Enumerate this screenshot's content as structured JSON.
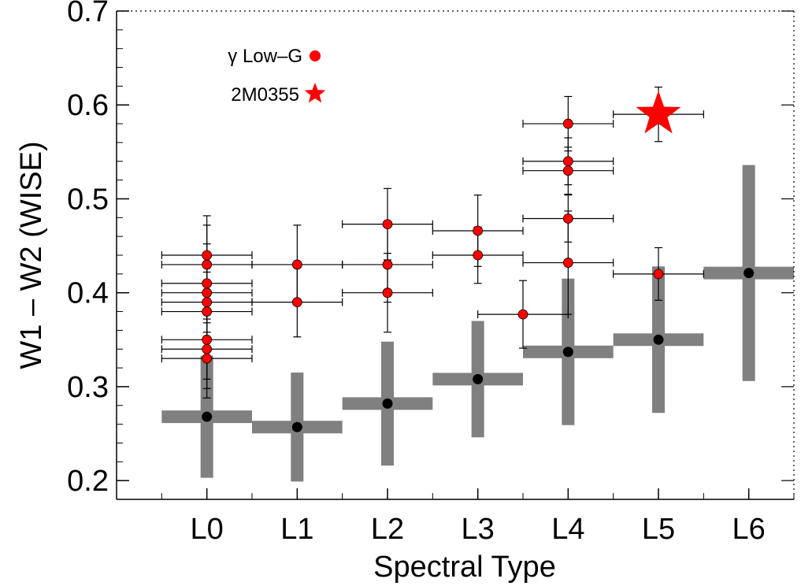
{
  "chart_data": {
    "type": "scatter",
    "title": "",
    "xlabel": "Spectral Type",
    "ylabel": "W1 – W2 (WISE)",
    "xlim": [
      -1.0,
      6.5
    ],
    "ylim": [
      0.18,
      0.7
    ],
    "x_ticks": [
      {
        "value": 0,
        "label": "L0"
      },
      {
        "value": 1,
        "label": "L1"
      },
      {
        "value": 2,
        "label": "L2"
      },
      {
        "value": 3,
        "label": "L3"
      },
      {
        "value": 4,
        "label": "L4"
      },
      {
        "value": 5,
        "label": "L5"
      },
      {
        "value": 6,
        "label": "L6"
      }
    ],
    "y_ticks": [
      {
        "value": 0.2,
        "label": "0.2"
      },
      {
        "value": 0.3,
        "label": "0.3"
      },
      {
        "value": 0.4,
        "label": "0.4"
      },
      {
        "value": 0.5,
        "label": "0.5"
      },
      {
        "value": 0.6,
        "label": "0.6"
      },
      {
        "value": 0.7,
        "label": "0.7"
      }
    ],
    "grid": false,
    "legend_position": "top-left",
    "colors": {
      "field": "#808080",
      "field_point": "#000000",
      "low_g": "#ff0000",
      "highlight": "#ff0000"
    },
    "series": [
      {
        "name": "",
        "marker": "black-circle-gray-errorbars",
        "points": [
          {
            "x": 0,
            "y": 0.268,
            "xerr": 0.5,
            "yerr": 0.065
          },
          {
            "x": 1,
            "y": 0.257,
            "xerr": 0.5,
            "yerr": 0.058
          },
          {
            "x": 2,
            "y": 0.282,
            "xerr": 0.5,
            "yerr": 0.066
          },
          {
            "x": 3,
            "y": 0.308,
            "xerr": 0.5,
            "yerr": 0.062
          },
          {
            "x": 4,
            "y": 0.337,
            "xerr": 0.5,
            "yerr": 0.078
          },
          {
            "x": 5,
            "y": 0.35,
            "xerr": 0.5,
            "yerr": 0.078
          },
          {
            "x": 6,
            "y": 0.421,
            "xerr": 0.5,
            "yerr": 0.115
          }
        ]
      },
      {
        "name": "γ Low–G",
        "marker": "red-circle",
        "points": [
          {
            "x": 0,
            "y": 0.44,
            "xerr": 0.5,
            "yerr": 0.042
          },
          {
            "x": 0,
            "y": 0.43,
            "xerr": 0.5,
            "yerr": 0.042
          },
          {
            "x": 0,
            "y": 0.41,
            "xerr": 0.5,
            "yerr": 0.042
          },
          {
            "x": 0,
            "y": 0.4,
            "xerr": 0.5,
            "yerr": 0.042
          },
          {
            "x": 0,
            "y": 0.39,
            "xerr": 0.5,
            "yerr": 0.042
          },
          {
            "x": 0,
            "y": 0.38,
            "xerr": 0.5,
            "yerr": 0.042
          },
          {
            "x": 0,
            "y": 0.35,
            "xerr": 0.5,
            "yerr": 0.042
          },
          {
            "x": 0,
            "y": 0.34,
            "xerr": 0.5,
            "yerr": 0.042
          },
          {
            "x": 0,
            "y": 0.33,
            "xerr": 0.5,
            "yerr": 0.042
          },
          {
            "x": 1,
            "y": 0.43,
            "xerr": 0.5,
            "yerr": 0.042
          },
          {
            "x": 1,
            "y": 0.39,
            "xerr": 0.5,
            "yerr": 0.037
          },
          {
            "x": 2,
            "y": 0.473,
            "xerr": 0.5,
            "yerr": 0.038
          },
          {
            "x": 2,
            "y": 0.43,
            "xerr": 0.5,
            "yerr": 0.04
          },
          {
            "x": 2,
            "y": 0.4,
            "xerr": 0.5,
            "yerr": 0.042
          },
          {
            "x": 3,
            "y": 0.466,
            "xerr": 0.5,
            "yerr": 0.038
          },
          {
            "x": 3,
            "y": 0.44,
            "xerr": 0.5,
            "yerr": 0.03
          },
          {
            "x": 3.5,
            "y": 0.377,
            "xerr": 0.5,
            "yerr": 0.036
          },
          {
            "x": 4,
            "y": 0.58,
            "xerr": 0.5,
            "yerr": 0.029
          },
          {
            "x": 4,
            "y": 0.54,
            "xerr": 0.5,
            "yerr": 0.025
          },
          {
            "x": 4,
            "y": 0.53,
            "xerr": 0.5,
            "yerr": 0.025
          },
          {
            "x": 4,
            "y": 0.479,
            "xerr": 0.5,
            "yerr": 0.025
          },
          {
            "x": 4,
            "y": 0.432,
            "xerr": 0.5,
            "yerr": 0.055
          },
          {
            "x": 5,
            "y": 0.42,
            "xerr": 0.5,
            "yerr": 0.028
          }
        ]
      },
      {
        "name": "2M0355",
        "marker": "red-star",
        "points": [
          {
            "x": 5,
            "y": 0.59,
            "xerr": 0.5,
            "yerr": 0.029
          }
        ]
      }
    ]
  }
}
